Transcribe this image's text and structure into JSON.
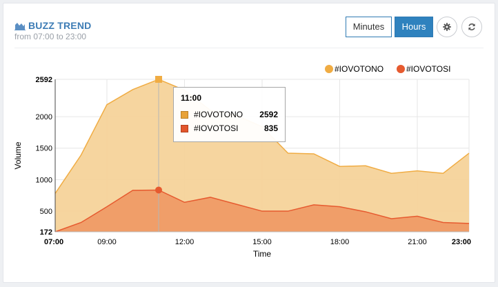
{
  "header": {
    "title": "BUZZ TREND",
    "subtitle": "from 07:00 to 23:00",
    "minutes_label": "Minutes",
    "hours_label": "Hours"
  },
  "icons": {
    "title": "area-chart-icon",
    "settings": "gear-icon",
    "refresh": "refresh-icon"
  },
  "chart_data": {
    "type": "area",
    "x": [
      "07:00",
      "08:00",
      "09:00",
      "10:00",
      "11:00",
      "12:00",
      "13:00",
      "14:00",
      "15:00",
      "16:00",
      "17:00",
      "18:00",
      "19:00",
      "20:00",
      "21:00",
      "22:00",
      "23:00"
    ],
    "xticks": [
      "07:00",
      "09:00",
      "12:00",
      "15:00",
      "18:00",
      "21:00",
      "23:00"
    ],
    "series": [
      {
        "name": "#IOVOTONO",
        "color": "#f0ac43",
        "fill": "#f5d39a",
        "values": [
          780,
          1390,
          2190,
          2430,
          2592,
          2420,
          2100,
          2020,
          1840,
          1420,
          1410,
          1210,
          1220,
          1100,
          1140,
          1100,
          1420
        ]
      },
      {
        "name": "#IOVOTOSI",
        "color": "#e65a2f",
        "fill": "#ef9b66",
        "values": [
          172,
          320,
          570,
          830,
          835,
          640,
          720,
          610,
          500,
          500,
          600,
          570,
          490,
          380,
          420,
          320,
          305
        ]
      }
    ],
    "yticks": [
      172,
      500,
      1000,
      1500,
      2000,
      2592
    ],
    "ylim": [
      172,
      2592
    ],
    "xlabel": "Time",
    "ylabel": "Volume",
    "grid": true,
    "legend_position": "top-right",
    "tooltip": {
      "title": "11:00",
      "rows": [
        {
          "name": "#IOVOTONO",
          "value": "2592"
        },
        {
          "name": "#IOVOTOSI",
          "value": "835"
        }
      ]
    },
    "hover_x": "11:00"
  }
}
